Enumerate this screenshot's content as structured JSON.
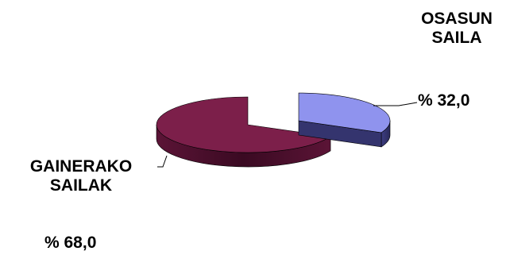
{
  "chart_data": {
    "type": "pie",
    "style": "3d-exploded",
    "slices": [
      {
        "label": "OSASUN SAILA",
        "label_lines": [
          "OSASUN",
          "SAILA"
        ],
        "value": 32.0,
        "value_label": "% 32,0",
        "color": "#8f93ee",
        "side_color": "#34346e"
      },
      {
        "label": "GAINERAKO SAILAK",
        "label_lines": [
          "GAINERAKO",
          "SAILAK"
        ],
        "value": 68.0,
        "value_label": "% 68,0",
        "color": "#7c1f4a",
        "side_color": "#4a1030"
      }
    ],
    "legend": "none",
    "grid": false
  }
}
